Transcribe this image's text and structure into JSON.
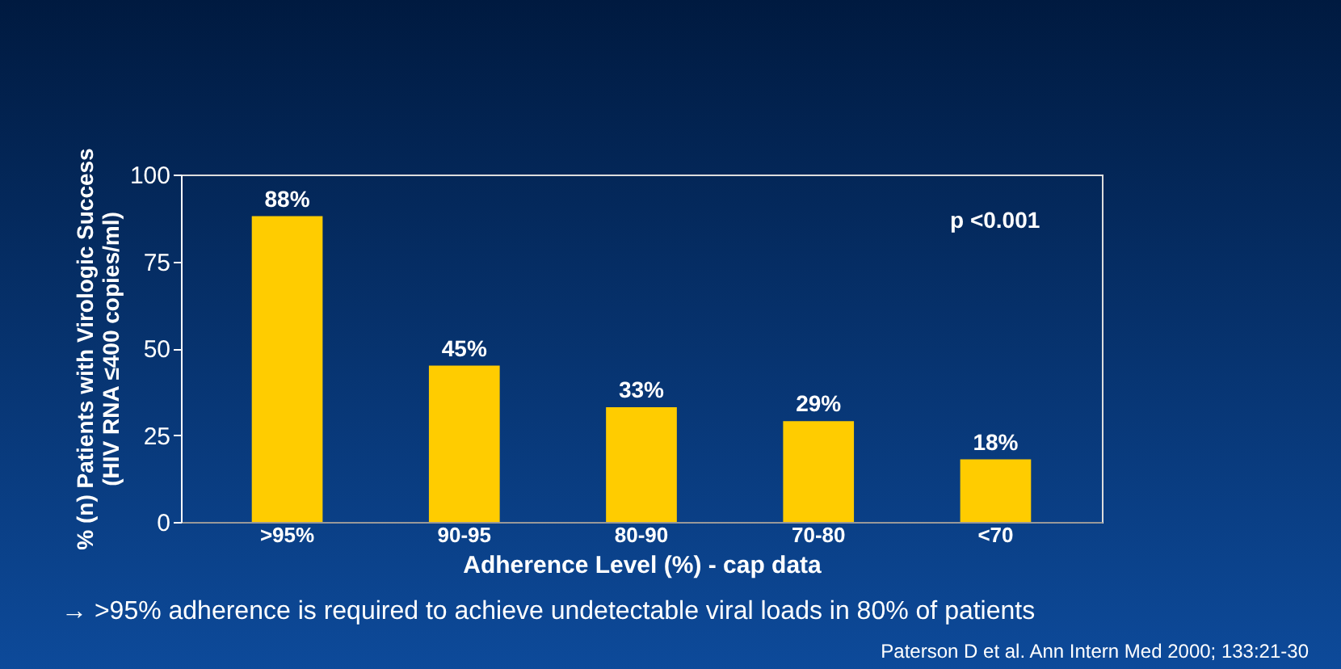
{
  "chart_data": {
    "type": "bar",
    "xlabel": "Adherence Level (%) - cap data",
    "ylabel": "% (n) Patients with Virologic Success\n(HIV RNA ≤400 copies/ml)",
    "categories": [
      ">95%",
      "90-95",
      "80-90",
      "70-80",
      "<70"
    ],
    "values": [
      88,
      45,
      33,
      29,
      18
    ],
    "value_labels": [
      "88%",
      "45%",
      "33%",
      "29%",
      "18%"
    ],
    "color": "#ffcc00",
    "ylim": [
      0,
      100
    ],
    "yticks": [
      0,
      25,
      50,
      75,
      100
    ],
    "grid": false,
    "annotations": [
      "p <0.001",
      "→  >95% adherence is required to achieve undetectable viral loads in 80% of patients",
      "Paterson D et al. Ann Intern Med 2000; 133:21-30"
    ]
  }
}
